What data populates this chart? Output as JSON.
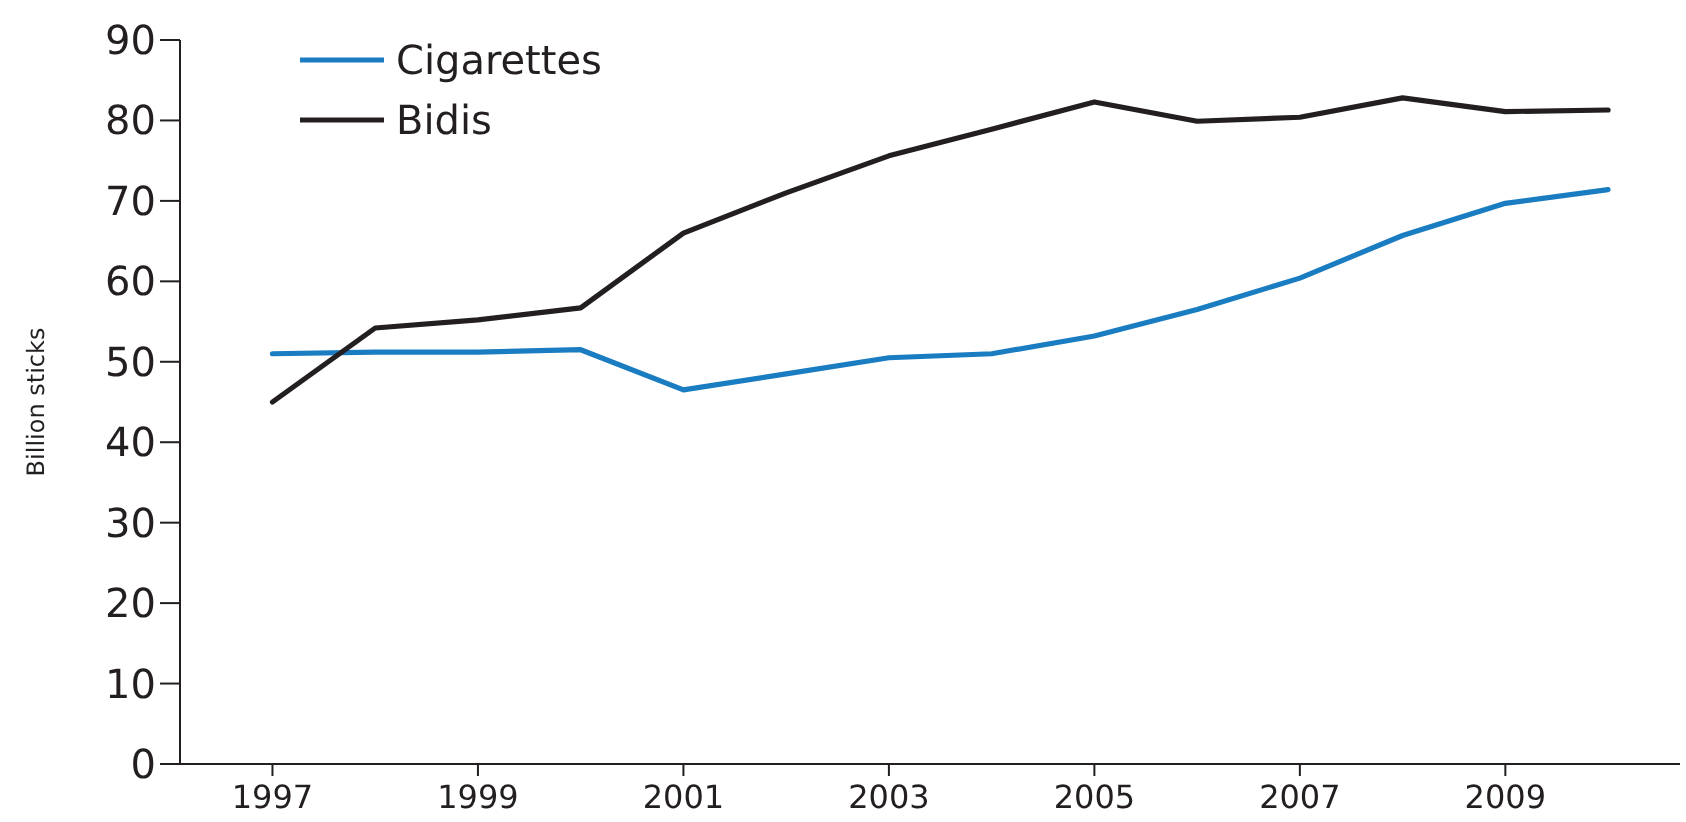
{
  "chart_data": {
    "type": "line",
    "ylabel": "Billion sticks",
    "x": [
      1997,
      1998,
      1999,
      2000,
      2001,
      2002,
      2003,
      2004,
      2005,
      2006,
      2007,
      2008,
      2009,
      2010
    ],
    "series": [
      {
        "name": "Cigarettes",
        "color": "#1a7cc1",
        "values": [
          51,
          51.2,
          51.2,
          51.5,
          46.5,
          48.5,
          50.5,
          51,
          53.2,
          56.5,
          60.4,
          65.7,
          69.7,
          71.4
        ]
      },
      {
        "name": "Bidis",
        "color": "#231f20",
        "values": [
          45,
          54.2,
          55.2,
          56.7,
          66,
          71,
          75.6,
          78.9,
          82.3,
          79.9,
          80.4,
          82.8,
          81.1,
          81.3
        ]
      }
    ],
    "xlim": [
      1996.1,
      2010.7
    ],
    "xticks": [
      1997,
      1999,
      2001,
      2003,
      2005,
      2007,
      2009
    ],
    "ylim": [
      0,
      90
    ],
    "yticks": [
      0,
      10,
      20,
      30,
      40,
      50,
      60,
      70,
      80,
      90
    ],
    "grid": false,
    "legend": "top left",
    "marker": "none",
    "line_style": "solid"
  }
}
